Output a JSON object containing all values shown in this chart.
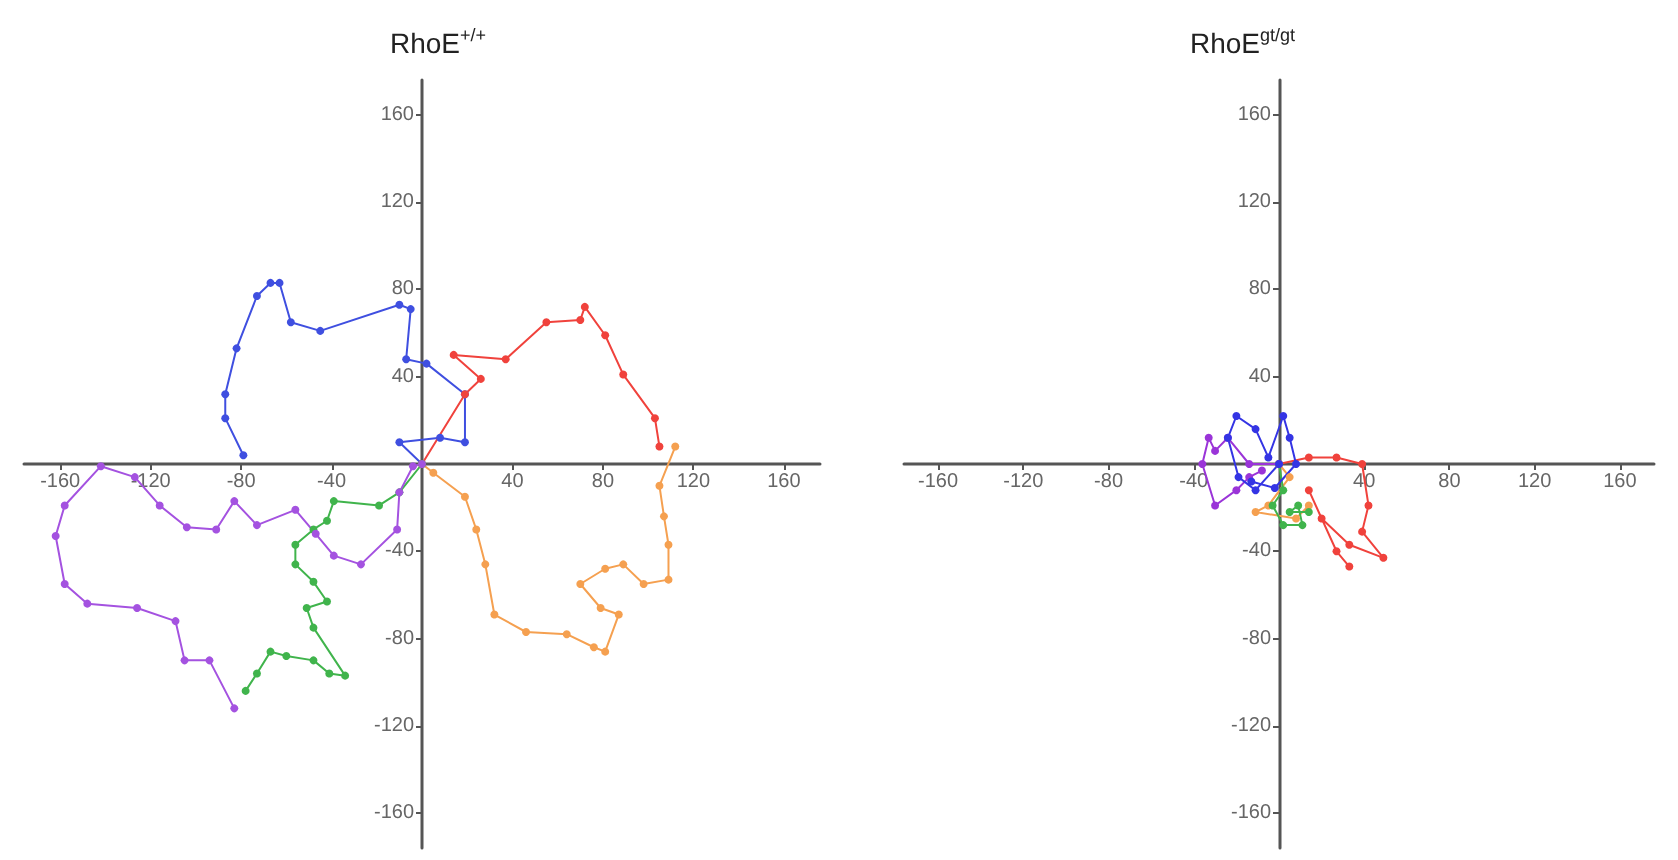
{
  "chart_data": [
    {
      "type": "line",
      "title": "RhoE$^{+/+}$",
      "xlim": [
        -176,
        176
      ],
      "ylim": [
        -176,
        176
      ],
      "xticks": [
        -160,
        -120,
        -80,
        -40,
        40,
        80,
        120,
        160
      ],
      "yticks": [
        -160,
        -120,
        -80,
        -40,
        40,
        80,
        120,
        160
      ],
      "grid": false,
      "marker": "circle",
      "line_style": "solid",
      "series": [
        {
          "color": "#3f4fe0",
          "x": [
            0,
            -10,
            8,
            19,
            19,
            2,
            -7,
            -5,
            -10,
            -45,
            -58,
            -63,
            -67,
            -73,
            -82,
            -87,
            -87,
            -79
          ],
          "values": [
            0,
            10,
            12,
            10,
            32,
            46,
            48,
            71,
            73,
            61,
            65,
            83,
            83,
            77,
            53,
            32,
            21,
            4
          ]
        },
        {
          "color": "#f0423c",
          "x": [
            0,
            19,
            26,
            14,
            37,
            55,
            70,
            72,
            81,
            89,
            103,
            105
          ],
          "values": [
            0,
            32,
            39,
            50,
            48,
            65,
            66,
            72,
            59,
            41,
            21,
            8
          ]
        },
        {
          "color": "#f5a050",
          "x": [
            0,
            5,
            19,
            24,
            28,
            32,
            46,
            64,
            76,
            81,
            87,
            79,
            70,
            81,
            89,
            98,
            109,
            109,
            107,
            105,
            112
          ],
          "values": [
            0,
            -4,
            -15,
            -30,
            -46,
            -69,
            -77,
            -78,
            -84,
            -86,
            -69,
            -66,
            -55,
            -48,
            -46,
            -55,
            -53,
            -37,
            -24,
            -10,
            8
          ]
        },
        {
          "color": "#40b44c",
          "x": [
            0,
            -10,
            -19,
            -39,
            -42,
            -48,
            -56,
            -56,
            -48,
            -42,
            -51,
            -48,
            -34,
            -41,
            -48,
            -60,
            -67,
            -73,
            -78
          ],
          "values": [
            0,
            -13,
            -19,
            -17,
            -26,
            -30,
            -37,
            -46,
            -54,
            -63,
            -66,
            -75,
            -97,
            -96,
            -90,
            -88,
            -86,
            -96,
            -104
          ]
        },
        {
          "color": "#a452e0",
          "x": [
            0,
            -4,
            -10,
            -11,
            -27,
            -39,
            -47,
            -56,
            -73,
            -83,
            -91,
            -104,
            -116,
            -127,
            -142,
            -158,
            -162,
            -158,
            -148,
            -126,
            -109,
            -105,
            -94,
            -83
          ],
          "values": [
            0,
            -1,
            -13,
            -30,
            -46,
            -42,
            -32,
            -21,
            -28,
            -17,
            -30,
            -29,
            -19,
            -6,
            -1,
            -19,
            -33,
            -55,
            -64,
            -66,
            -72,
            -90,
            -90,
            -112
          ]
        }
      ]
    },
    {
      "type": "line",
      "title": "RhoE$^{gt/gt}$",
      "xlim": [
        -176,
        176
      ],
      "ylim": [
        -176,
        176
      ],
      "xticks": [
        -160,
        -120,
        -80,
        -40,
        40,
        80,
        120,
        160
      ],
      "yticks": [
        -160,
        -120,
        -80,
        -40,
        40,
        80,
        120,
        160
      ],
      "grid": false,
      "marker": "circle",
      "line_style": "solid",
      "series": [
        {
          "color": "#f0423c",
          "x": [
            0,
            14,
            27,
            39,
            42,
            39,
            49,
            33,
            20,
            14,
            27,
            33
          ],
          "values": [
            0,
            3,
            3,
            0,
            -19,
            -31,
            -43,
            -37,
            -25,
            -12,
            -40,
            -47
          ]
        },
        {
          "color": "#f5a050",
          "x": [
            0,
            5,
            -5,
            -11,
            8,
            14
          ],
          "values": [
            0,
            -6,
            -19,
            -22,
            -25,
            -19
          ]
        },
        {
          "color": "#40b44c",
          "x": [
            0,
            2,
            -3,
            2,
            11,
            9,
            5,
            14
          ],
          "values": [
            0,
            -12,
            -19,
            -28,
            -28,
            -19,
            -22,
            -22
          ]
        },
        {
          "color": "#9a34d8",
          "x": [
            0,
            -14,
            -24,
            -30,
            -33,
            -36,
            -30,
            -20,
            -14,
            -8
          ],
          "values": [
            0,
            0,
            12,
            6,
            12,
            0,
            -19,
            -12,
            -6,
            -3
          ]
        },
        {
          "color": "#3434e4",
          "x": [
            0,
            -11,
            -19,
            -24,
            -20,
            -11,
            -5,
            2,
            5,
            8,
            -2,
            -13
          ],
          "values": [
            0,
            -12,
            -6,
            12,
            22,
            16,
            3,
            22,
            12,
            0,
            -11,
            -8
          ]
        }
      ]
    }
  ]
}
